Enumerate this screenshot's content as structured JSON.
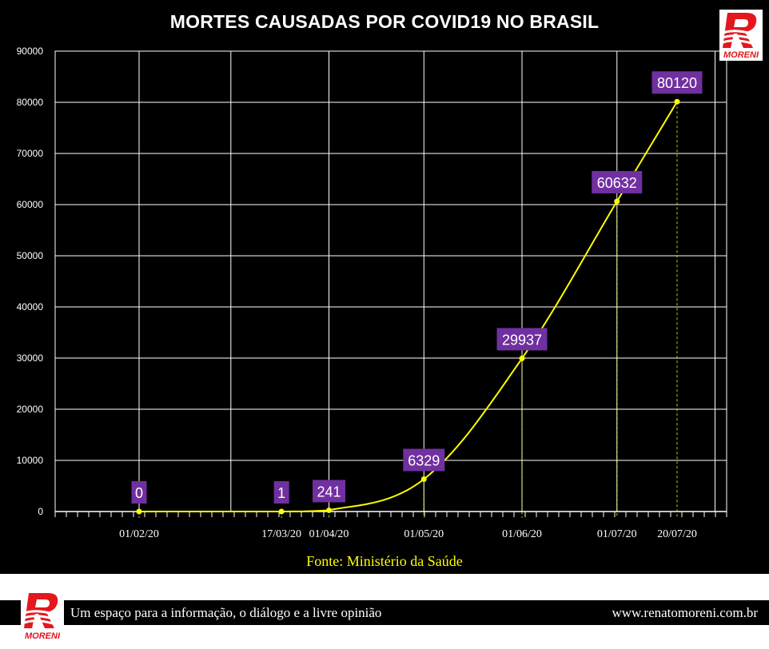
{
  "chart_data": {
    "type": "line",
    "title": "MORTES CAUSADAS POR COVID19 NO BRASIL",
    "x": [
      "01/02/20",
      "17/03/20",
      "01/04/20",
      "01/05/20",
      "01/06/20",
      "01/07/20",
      "20/07/20"
    ],
    "series": [
      {
        "values": [
          0,
          1,
          241,
          6329,
          29937,
          60632,
          80120
        ]
      }
    ],
    "data_labels": [
      "0",
      "1",
      "241",
      "6329",
      "29937",
      "60632",
      "80120"
    ],
    "ylim": [
      0,
      90000
    ],
    "y_ticks": [
      "0",
      "10000",
      "20000",
      "30000",
      "40000",
      "50000",
      "60000",
      "70000",
      "80000",
      "90000"
    ],
    "xlabel": "",
    "ylabel": "",
    "grid": true,
    "colors": {
      "line": "#ffff00",
      "point": "#ffff00",
      "label_bg": "#7030a0",
      "label_text": "#ffffff",
      "grid": "#ffffff",
      "background": "#000000"
    }
  },
  "source": "Fonte: Ministério  da Saúde",
  "footer": {
    "slogan": "Um espaço  para a informação,  o diálogo e a livre  opinião",
    "url": "www.renatomoreni.com.br"
  },
  "logo": {
    "text": "MORENI"
  }
}
